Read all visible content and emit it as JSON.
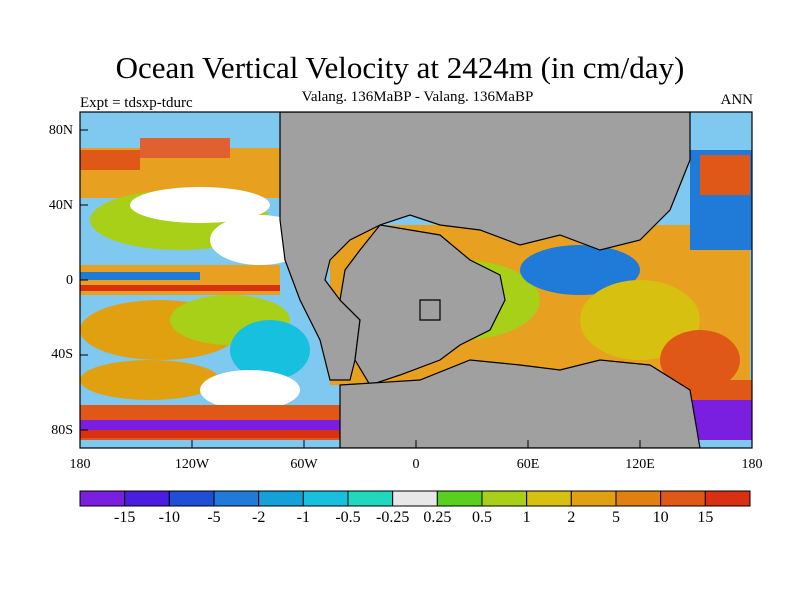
{
  "title": "Ocean Vertical Velocity at 2424m (in cm/day)",
  "subtitle": "Valang. 136MaBP - Valang.  136MaBP",
  "experiment": "Expt = tdsxp-tdurc",
  "season": "ANN",
  "axes": {
    "y_ticks": [
      "80N",
      "40N",
      "0",
      "40S",
      "80S"
    ],
    "x_ticks": [
      "180",
      "120W",
      "60W",
      "0",
      "60E",
      "120E",
      "180"
    ]
  },
  "colorbar": {
    "labels": [
      "-15",
      "-10",
      "-5",
      "-2",
      "-1",
      "-0.5",
      "-0.25",
      "0.25",
      "0.5",
      "1",
      "2",
      "5",
      "10",
      "15"
    ],
    "colors": [
      "#7a1fe0",
      "#4a1ee0",
      "#1f4fd8",
      "#1f7ad8",
      "#14a0d8",
      "#18c0e0",
      "#20d8c0",
      "#e8e8e8",
      "#58d020",
      "#a8d018",
      "#d8c010",
      "#e0a010",
      "#e08010",
      "#e05818",
      "#d83010"
    ]
  },
  "colors": {
    "land": "#a0a0a0",
    "background": "#ffffff"
  }
}
